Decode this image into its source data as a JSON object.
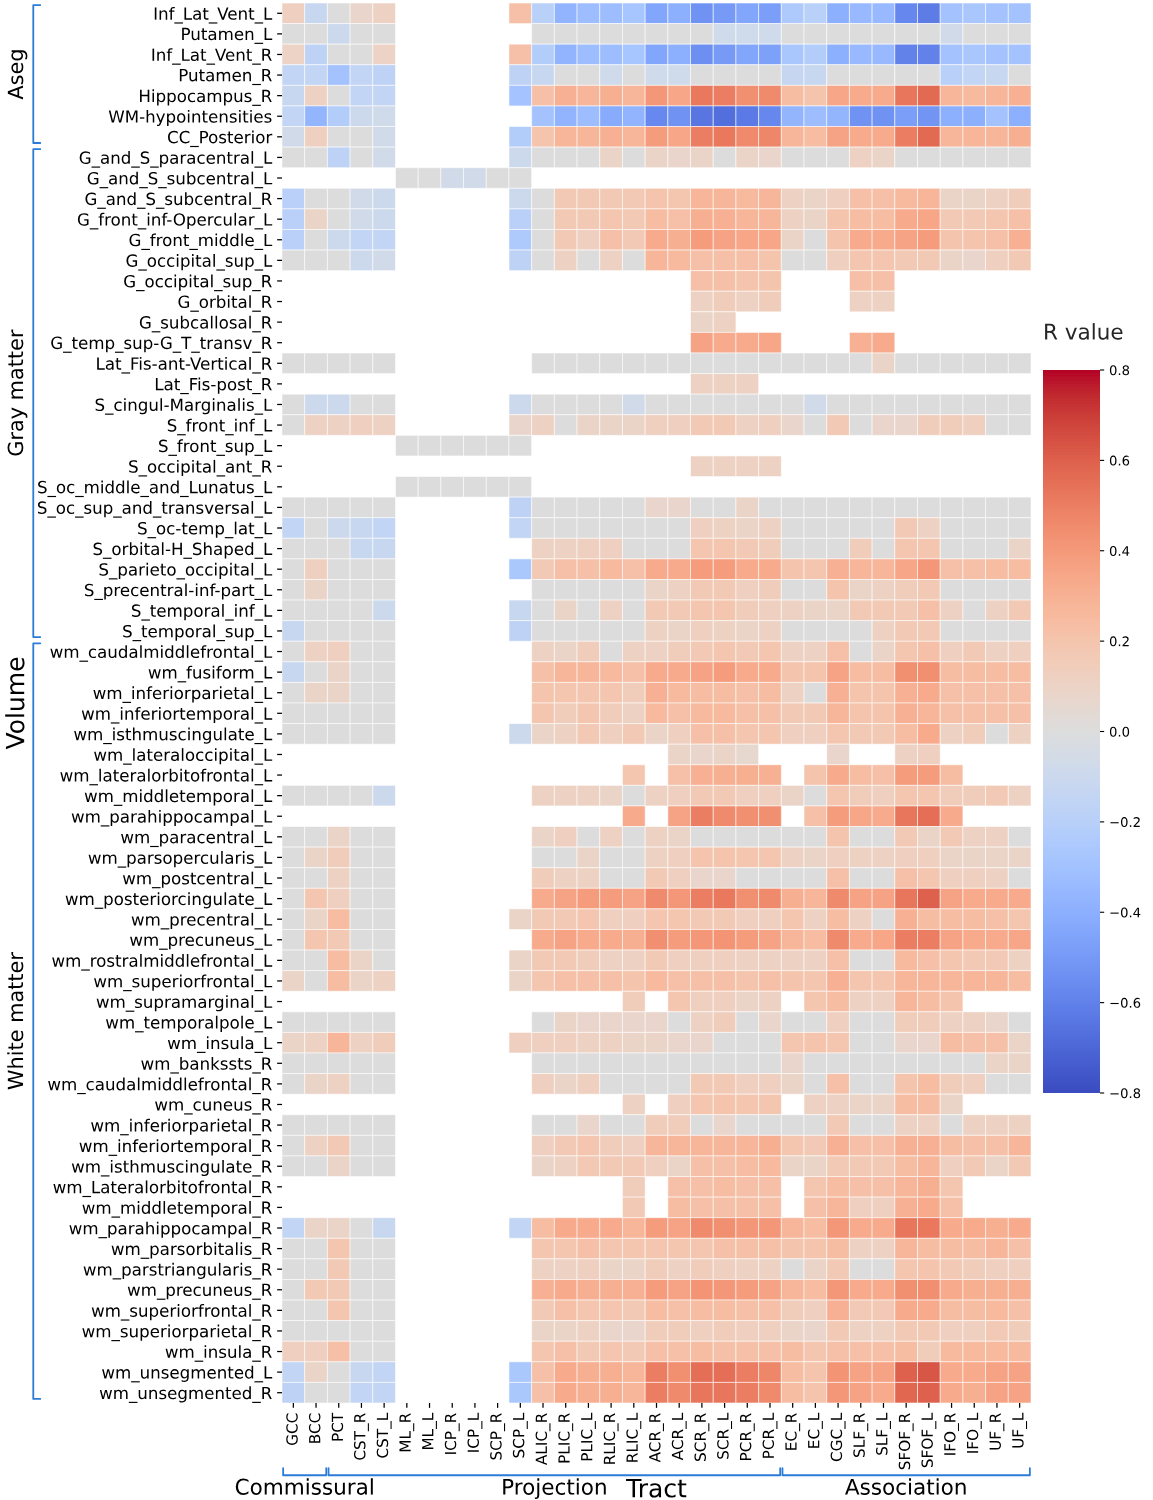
{
  "chart_data": {
    "type": "heatmap",
    "xlabel": "Tract",
    "ylabel": "Volume",
    "clabel": "R value",
    "clim": [
      -0.8,
      0.8
    ],
    "cticks": [
      {
        "value": -0.8,
        "label": "−0.8"
      },
      {
        "value": -0.6,
        "label": "−0.6"
      },
      {
        "value": -0.4,
        "label": "−0.4"
      },
      {
        "value": -0.2,
        "label": "−0.2"
      },
      {
        "value": 0,
        "label": "0.0"
      },
      0.2,
      0.4,
      0.6,
      0.8
    ],
    "categories": [
      "GCC",
      "BCC",
      "PCT",
      "CST_R",
      "CST_L",
      "ML_R",
      "ML_L",
      "ICP_R",
      "ICP_L",
      "SCP_R",
      "SCP_L",
      "ALIC_R",
      "PLIC_R",
      "PLIC_L",
      "RLIC_R",
      "RLIC_L",
      "ACR_R",
      "ACR_L",
      "SCR_R",
      "SCR_L",
      "PCR_R",
      "PCR_L",
      "EC_R",
      "EC_L",
      "CGC_L",
      "SLF_R",
      "SLF_L",
      "SFOF_R",
      "SFOF_L",
      "IFO_R",
      "IFO_L",
      "UF_R",
      "UF_L"
    ],
    "y_categories": [
      "Inf_Lat_Vent_L",
      "Putamen_L",
      "Inf_Lat_Vent_R",
      "Putamen_R",
      "Hippocampus_R",
      "WM-hypointensities",
      "CC_Posterior",
      "G_and_S_paracentral_L",
      "G_and_S_subcentral_L",
      "G_and_S_subcentral_R",
      "G_front_inf-Opercular_L",
      "G_front_middle_L",
      "G_occipital_sup_L",
      "G_occipital_sup_R",
      "G_orbital_R",
      "G_subcallosal_R",
      "G_temp_sup-G_T_transv_R",
      "Lat_Fis-ant-Vertical_R",
      "Lat_Fis-post_R",
      "S_cingul-Marginalis_L",
      "S_front_inf_L",
      "S_front_sup_L",
      "S_occipital_ant_R",
      "S_oc_middle_and_Lunatus_L",
      "S_oc_sup_and_transversal_L",
      "S_oc-temp_lat_L",
      "S_orbital-H_Shaped_L",
      "S_parieto_occipital_L",
      "S_precentral-inf-part_L",
      "S_temporal_inf_L",
      "S_temporal_sup_L",
      "wm_caudalmiddlefrontal_L",
      "wm_fusiform_L",
      "wm_inferiorparietal_L",
      "wm_inferiortemporal_L",
      "wm_isthmuscingulate_L",
      "wm_lateraloccipital_L",
      "wm_lateralorbitofrontal_L",
      "wm_middletemporal_L",
      "wm_parahippocampal_L",
      "wm_paracentral_L",
      "wm_parsopercularis_L",
      "wm_postcentral_L",
      "wm_posteriorcingulate_L",
      "wm_precentral_L",
      "wm_precuneus_L",
      "wm_rostralmiddlefrontal_L",
      "wm_superiorfrontal_L",
      "wm_supramarginal_L",
      "wm_temporalpole_L",
      "wm_insula_L",
      "wm_bankssts_R",
      "wm_caudalmiddlefrontal_R",
      "wm_cuneus_R",
      "wm_inferiorparietal_R",
      "wm_inferiortemporal_R",
      "wm_isthmuscingulate_R",
      "wm_Lateralorbitofrontal_R",
      "wm_middletemporal_R",
      "wm_parahippocampal_R",
      "wm_parsorbitalis_R",
      "wm_parstriangularis_R",
      "wm_precuneus_R",
      "wm_superiorfrontal_R",
      "wm_superiorparietal_R",
      "wm_insula_R",
      "wm_unsegmented_L",
      "wm_unsegmented_R"
    ],
    "cells": [
      [
        0.13,
        -0.12,
        0,
        0.08,
        0.11,
        null,
        null,
        null,
        null,
        null,
        0.22,
        -0.2,
        -0.38,
        -0.33,
        -0.33,
        -0.28,
        -0.45,
        -0.4,
        -0.53,
        -0.5,
        -0.45,
        -0.48,
        -0.25,
        -0.2,
        -0.4,
        -0.35,
        -0.35,
        -0.58,
        -0.62,
        -0.3,
        -0.27,
        -0.3,
        -0.3
      ],
      [
        0,
        0,
        -0.1,
        0,
        0,
        null,
        null,
        null,
        null,
        null,
        null,
        0,
        0,
        0,
        0,
        0,
        0,
        0,
        0,
        -0.08,
        -0.08,
        -0.08,
        0,
        0,
        0,
        0,
        0,
        0,
        0,
        -0.07,
        0,
        0,
        0
      ],
      [
        0.1,
        -0.17,
        0,
        0,
        0.1,
        null,
        null,
        null,
        null,
        null,
        0.22,
        -0.22,
        -0.38,
        -0.33,
        -0.33,
        -0.28,
        -0.45,
        -0.4,
        -0.55,
        -0.5,
        -0.45,
        -0.47,
        -0.27,
        -0.22,
        -0.4,
        -0.35,
        -0.35,
        -0.6,
        -0.6,
        -0.3,
        -0.27,
        -0.3,
        -0.3
      ],
      [
        -0.15,
        -0.15,
        -0.3,
        -0.15,
        -0.17,
        null,
        null,
        null,
        null,
        null,
        -0.17,
        -0.12,
        0,
        0,
        -0.08,
        0,
        -0.08,
        -0.08,
        0,
        0,
        0,
        0,
        -0.13,
        -0.12,
        0,
        0,
        0,
        0,
        0,
        -0.2,
        -0.15,
        -0.12,
        0
      ],
      [
        -0.12,
        0.11,
        0,
        -0.15,
        -0.15,
        null,
        null,
        null,
        null,
        null,
        -0.29,
        0.22,
        0.3,
        0.28,
        0.31,
        0.28,
        0.41,
        0.35,
        0.52,
        0.5,
        0.44,
        0.46,
        0.24,
        0.2,
        0.35,
        0.33,
        0.33,
        0.53,
        0.57,
        0.28,
        0.25,
        0.28,
        0.3
      ],
      [
        -0.15,
        -0.37,
        -0.22,
        -0.1,
        -0.08,
        null,
        null,
        null,
        null,
        null,
        null,
        -0.3,
        -0.38,
        -0.33,
        -0.42,
        -0.38,
        -0.57,
        -0.53,
        -0.65,
        -0.67,
        -0.63,
        -0.58,
        -0.37,
        -0.33,
        -0.37,
        -0.53,
        -0.53,
        -0.48,
        -0.52,
        -0.4,
        -0.4,
        -0.3,
        -0.4
      ],
      [
        -0.07,
        0.13,
        0,
        0,
        -0.07,
        null,
        null,
        null,
        null,
        null,
        -0.22,
        0.2,
        0.28,
        0.28,
        0.3,
        0.28,
        0.39,
        0.35,
        0.5,
        0.52,
        0.46,
        0.47,
        0.28,
        0.24,
        0.36,
        0.33,
        0.33,
        0.5,
        0.57,
        0.28,
        0.28,
        0.28,
        0.31
      ],
      [
        0,
        0,
        -0.17,
        0,
        -0.07,
        null,
        null,
        null,
        null,
        null,
        -0.1,
        0,
        0,
        0,
        0.09,
        0,
        0.09,
        0.08,
        0.09,
        0,
        0.09,
        0.08,
        0,
        0,
        0,
        0.11,
        0.09,
        0,
        0,
        0,
        0,
        0,
        0
      ],
      [
        null,
        null,
        null,
        null,
        null,
        0,
        0,
        -0.07,
        -0.07,
        0,
        0,
        null,
        null,
        null,
        null,
        null,
        null,
        null,
        null,
        null,
        null,
        null,
        null,
        null,
        null,
        null,
        null,
        null,
        null,
        null,
        null,
        null,
        null
      ],
      [
        -0.19,
        0,
        0,
        -0.07,
        -0.1,
        null,
        null,
        null,
        null,
        null,
        -0.1,
        0,
        0.17,
        0.17,
        0.17,
        0.17,
        0.2,
        0.19,
        0.28,
        0.28,
        0.25,
        0.28,
        0.11,
        0.09,
        0.13,
        0.22,
        0.22,
        0.25,
        0.28,
        0.09,
        0.09,
        0.11,
        0.14
      ],
      [
        -0.19,
        0.09,
        0,
        -0.07,
        -0.1,
        null,
        null,
        null,
        null,
        null,
        -0.19,
        0,
        0.17,
        0.17,
        0.19,
        0.17,
        0.24,
        0.22,
        0.31,
        0.3,
        0.28,
        0.28,
        0.11,
        0.09,
        0.2,
        0.24,
        0.24,
        0.33,
        0.35,
        0.17,
        0.17,
        0.19,
        0.22
      ],
      [
        -0.19,
        0,
        -0.1,
        -0.15,
        -0.15,
        null,
        null,
        null,
        null,
        null,
        -0.25,
        0,
        0.17,
        0.13,
        0.22,
        0.17,
        0.33,
        0.31,
        0.39,
        0.36,
        0.35,
        0.35,
        0.09,
        0,
        0.2,
        0.33,
        0.33,
        0.36,
        0.39,
        0.2,
        0.2,
        0.22,
        0.3
      ],
      [
        0,
        0,
        0,
        -0.1,
        -0.07,
        null,
        null,
        null,
        null,
        null,
        -0.17,
        0,
        0.11,
        0,
        0.11,
        0,
        0.28,
        0.25,
        0.22,
        0.22,
        0.22,
        0.2,
        0,
        0,
        0.13,
        0.19,
        0.19,
        0.17,
        0.17,
        0.09,
        0.08,
        0.13,
        0.17
      ],
      [
        null,
        null,
        null,
        null,
        null,
        null,
        null,
        null,
        null,
        null,
        null,
        null,
        null,
        null,
        null,
        null,
        null,
        null,
        0.22,
        0.22,
        0.2,
        0.2,
        null,
        null,
        null,
        0.22,
        0.22,
        null,
        null,
        null,
        null,
        null,
        null
      ],
      [
        null,
        null,
        null,
        null,
        null,
        null,
        null,
        null,
        null,
        null,
        null,
        null,
        null,
        null,
        null,
        null,
        null,
        null,
        0.11,
        0.14,
        0.11,
        0.14,
        null,
        null,
        null,
        0.11,
        0.11,
        null,
        null,
        null,
        null,
        null,
        null
      ],
      [
        null,
        null,
        null,
        null,
        null,
        null,
        null,
        null,
        null,
        null,
        null,
        null,
        null,
        null,
        null,
        null,
        null,
        null,
        0.09,
        0.11,
        null,
        null,
        null,
        null,
        null,
        null,
        null,
        null,
        null,
        null,
        null,
        null,
        null
      ],
      [
        null,
        null,
        null,
        null,
        null,
        null,
        null,
        null,
        null,
        null,
        null,
        null,
        null,
        null,
        null,
        null,
        null,
        null,
        0.36,
        0.33,
        0.33,
        0.35,
        null,
        null,
        null,
        0.3,
        0.33,
        null,
        null,
        null,
        null,
        null,
        null
      ],
      [
        0,
        0,
        0,
        0,
        0,
        null,
        null,
        null,
        null,
        null,
        null,
        0,
        0,
        0,
        0,
        0,
        0,
        0,
        0,
        0,
        0,
        0,
        0,
        0,
        0,
        0,
        0.09,
        0,
        0,
        0,
        0,
        0,
        0
      ],
      [
        null,
        null,
        null,
        null,
        null,
        null,
        null,
        null,
        null,
        null,
        null,
        null,
        null,
        null,
        null,
        null,
        null,
        null,
        0.11,
        0.11,
        0.11,
        null,
        null,
        null,
        null,
        null,
        null,
        null,
        null,
        null,
        null,
        null,
        null
      ],
      [
        0,
        -0.1,
        -0.1,
        0,
        0,
        null,
        null,
        null,
        null,
        null,
        -0.1,
        0,
        0,
        0,
        0,
        -0.07,
        0,
        0,
        0,
        0,
        0,
        0,
        0,
        -0.07,
        0,
        0,
        0,
        0,
        0,
        0,
        0,
        0,
        0
      ],
      [
        0,
        0.11,
        0.11,
        0.13,
        0.11,
        null,
        null,
        null,
        null,
        null,
        0.08,
        0.11,
        0,
        0.09,
        0.09,
        0.09,
        0.13,
        0.13,
        0.17,
        0.17,
        0.11,
        0.13,
        0.08,
        0,
        0.17,
        0,
        0.08,
        0.08,
        0.14,
        0.14,
        0.13,
        0,
        0
      ],
      [
        null,
        null,
        null,
        null,
        null,
        0,
        0,
        0,
        0,
        0,
        0,
        null,
        null,
        null,
        null,
        null,
        null,
        null,
        null,
        null,
        null,
        null,
        null,
        null,
        null,
        null,
        null,
        null,
        null,
        null,
        null,
        null,
        null
      ],
      [
        null,
        null,
        null,
        null,
        null,
        null,
        null,
        null,
        null,
        null,
        null,
        null,
        null,
        null,
        null,
        null,
        null,
        null,
        0.11,
        0.11,
        0.11,
        0.11,
        null,
        null,
        null,
        null,
        null,
        null,
        null,
        null,
        null,
        null,
        null
      ],
      [
        null,
        null,
        null,
        null,
        null,
        0,
        0,
        0,
        0,
        0,
        0,
        null,
        null,
        null,
        null,
        null,
        null,
        null,
        null,
        null,
        null,
        null,
        null,
        null,
        null,
        null,
        null,
        null,
        null,
        null,
        null,
        null,
        null
      ],
      [
        0,
        0,
        0,
        0,
        0,
        null,
        null,
        null,
        null,
        null,
        -0.17,
        0,
        0,
        0,
        0,
        0,
        0.08,
        0.08,
        0,
        0,
        0.09,
        0,
        0,
        0,
        0,
        0,
        0,
        0,
        0,
        0,
        0,
        0,
        0
      ],
      [
        -0.15,
        0,
        -0.1,
        -0.12,
        -0.15,
        null,
        null,
        null,
        null,
        null,
        -0.15,
        0,
        0,
        0,
        0,
        0,
        0,
        0,
        0.13,
        0.11,
        0.09,
        0.11,
        0,
        0,
        0,
        0,
        0,
        0.17,
        0.11,
        0,
        0,
        0,
        0
      ],
      [
        0,
        0,
        0,
        -0.12,
        -0.12,
        null,
        null,
        null,
        null,
        null,
        null,
        0.11,
        0.11,
        0.13,
        0.13,
        0,
        0,
        0,
        0.19,
        0.19,
        0.17,
        0.14,
        0,
        0,
        0,
        0.14,
        0,
        0.19,
        0.19,
        0,
        0,
        0,
        0.09
      ],
      [
        0,
        0.13,
        0,
        0,
        0,
        null,
        null,
        null,
        null,
        null,
        -0.26,
        0.17,
        0.22,
        0.22,
        0.25,
        0.22,
        0.33,
        0.33,
        0.39,
        0.39,
        0.33,
        0.33,
        0.2,
        0.19,
        0.3,
        0.28,
        0.28,
        0.35,
        0.41,
        0.22,
        0.22,
        0.24,
        0.24
      ],
      [
        0,
        0.09,
        0,
        0,
        0,
        null,
        null,
        null,
        null,
        null,
        null,
        0,
        0,
        0,
        0,
        0,
        0.09,
        0.11,
        0.17,
        0.17,
        0.13,
        0.14,
        0,
        0,
        0.2,
        0.09,
        0.11,
        0.14,
        0.17,
        0,
        0,
        0,
        0
      ],
      [
        0,
        0,
        0,
        0,
        -0.1,
        null,
        null,
        null,
        null,
        null,
        -0.12,
        0,
        0.09,
        0,
        0.11,
        0,
        0.17,
        0.17,
        0.19,
        0.19,
        0.14,
        0.13,
        0.11,
        0.09,
        0.09,
        0.17,
        0.17,
        0.17,
        0.22,
        0.11,
        0,
        0.11,
        0.17
      ],
      [
        -0.12,
        0,
        0,
        0,
        0,
        null,
        null,
        null,
        null,
        null,
        -0.17,
        0,
        0,
        0,
        0,
        0,
        0.11,
        0.09,
        0.13,
        0.11,
        0.09,
        0.11,
        0,
        0,
        0,
        0,
        0.11,
        0.17,
        0.17,
        0,
        0,
        0,
        0
      ],
      [
        0,
        0.11,
        0.13,
        0,
        0,
        null,
        null,
        null,
        null,
        null,
        null,
        0.11,
        0.09,
        0.14,
        0,
        0.11,
        0.11,
        0.14,
        0.17,
        0.19,
        0.17,
        0.19,
        0.11,
        0.11,
        0.22,
        0,
        0.09,
        0.19,
        0.22,
        0.13,
        0.17,
        0.11,
        0.13
      ],
      [
        -0.12,
        0,
        0.09,
        0,
        0,
        null,
        null,
        null,
        null,
        null,
        null,
        0.22,
        0.28,
        0.28,
        0.25,
        0.22,
        0.33,
        0.33,
        0.36,
        0.39,
        0.33,
        0.33,
        0.2,
        0.2,
        0.36,
        0.24,
        0.24,
        0.44,
        0.44,
        0.24,
        0.24,
        0.24,
        0.24
      ],
      [
        0,
        0.09,
        0.09,
        0,
        0,
        null,
        null,
        null,
        null,
        null,
        null,
        0.2,
        0.19,
        0.19,
        0.19,
        0.14,
        0.3,
        0.25,
        0.24,
        0.24,
        0.22,
        0.24,
        0.11,
        0,
        0.3,
        0.2,
        0.2,
        0.3,
        0.33,
        0.22,
        0.22,
        0.22,
        0.22
      ],
      [
        0,
        0,
        0,
        0,
        0,
        null,
        null,
        null,
        null,
        null,
        null,
        0.19,
        0.14,
        0.19,
        0.14,
        0.11,
        0.25,
        0.22,
        0.25,
        0.25,
        0.22,
        0.22,
        0.17,
        0.17,
        0.28,
        0.2,
        0.2,
        0.3,
        0.28,
        0.22,
        0.22,
        0.22,
        0.22
      ],
      [
        0,
        0,
        0,
        0,
        0,
        null,
        null,
        null,
        null,
        null,
        -0.1,
        0.09,
        0.11,
        0.17,
        0.13,
        0.17,
        0.09,
        0.13,
        0.22,
        0.22,
        0.19,
        0.19,
        0.13,
        0.13,
        0.19,
        0.17,
        0.17,
        0.24,
        0.33,
        0.11,
        0.14,
        0,
        0.11
      ],
      [
        null,
        null,
        null,
        null,
        null,
        null,
        null,
        null,
        null,
        null,
        null,
        null,
        null,
        null,
        null,
        null,
        null,
        0.09,
        0.08,
        0.09,
        0.06,
        null,
        null,
        null,
        0.08,
        null,
        null,
        0.11,
        0.13,
        null,
        null,
        null,
        null
      ],
      [
        null,
        null,
        null,
        null,
        null,
        null,
        null,
        null,
        null,
        null,
        null,
        null,
        null,
        null,
        null,
        0.19,
        null,
        0.22,
        0.3,
        0.31,
        0.31,
        0.3,
        null,
        0.2,
        0.33,
        0.24,
        0.22,
        0.39,
        0.39,
        0.24,
        null,
        null,
        null
      ],
      [
        0,
        0,
        0,
        0,
        -0.1,
        null,
        null,
        null,
        null,
        null,
        null,
        0.11,
        0.11,
        0.11,
        0.09,
        0,
        0.11,
        0.13,
        0.17,
        0.17,
        0.13,
        0.13,
        0.09,
        0,
        0.19,
        0.14,
        0.13,
        0.19,
        0.19,
        0.14,
        0.14,
        0.17,
        0.11
      ],
      [
        null,
        null,
        null,
        null,
        null,
        null,
        null,
        null,
        null,
        null,
        null,
        null,
        null,
        null,
        null,
        0.33,
        null,
        0.36,
        0.5,
        0.46,
        0.44,
        0.44,
        null,
        0.22,
        0.39,
        0.35,
        0.33,
        0.53,
        0.55,
        0.33,
        null,
        null,
        null
      ],
      [
        0,
        0,
        0.09,
        0,
        0,
        null,
        null,
        null,
        null,
        null,
        null,
        0.09,
        0.13,
        0,
        0.11,
        0,
        0.11,
        0.09,
        0,
        0,
        0,
        0,
        0,
        0,
        0.2,
        0,
        0,
        0.17,
        0.09,
        0.17,
        0.11,
        0.11,
        0
      ],
      [
        0,
        0.09,
        0.14,
        0,
        0,
        null,
        null,
        null,
        null,
        null,
        null,
        0,
        0,
        0.09,
        0,
        0,
        0.11,
        0.13,
        0.2,
        0.2,
        0.19,
        0.19,
        0.11,
        0.09,
        0.13,
        0.11,
        0.11,
        0.13,
        0.13,
        0.09,
        0.09,
        0.09,
        0.09
      ],
      [
        0,
        0,
        0.11,
        0,
        0,
        null,
        null,
        null,
        null,
        null,
        null,
        0.14,
        0.11,
        0.11,
        0,
        0,
        0.17,
        0.13,
        0.08,
        0.08,
        0,
        0,
        0,
        0,
        0.22,
        0,
        0,
        0.22,
        0.19,
        0.13,
        0.13,
        0.11,
        0
      ],
      [
        0,
        0.19,
        0.13,
        0,
        0,
        null,
        null,
        null,
        null,
        null,
        null,
        0.33,
        0.36,
        0.39,
        0.39,
        0.36,
        0.46,
        0.41,
        0.5,
        0.52,
        0.44,
        0.46,
        0.31,
        0.28,
        0.46,
        0.36,
        0.36,
        0.53,
        0.6,
        0.36,
        0.33,
        0.33,
        0.33
      ],
      [
        0,
        0.09,
        0.24,
        0,
        0,
        null,
        null,
        null,
        null,
        null,
        0.09,
        0.17,
        0.17,
        0.19,
        0.13,
        0.13,
        0.19,
        0.19,
        0.17,
        0.17,
        0.13,
        0.13,
        0.19,
        0.11,
        0.24,
        0.11,
        0,
        0.3,
        0.24,
        0.24,
        0.24,
        0.22,
        0.19
      ],
      [
        0,
        0.19,
        0.17,
        0,
        0,
        null,
        null,
        null,
        null,
        null,
        null,
        0.33,
        0.36,
        0.33,
        0.33,
        0.31,
        0.44,
        0.39,
        0.41,
        0.42,
        0.39,
        0.36,
        0.28,
        0.24,
        0.46,
        0.33,
        0.35,
        0.5,
        0.5,
        0.36,
        0.33,
        0.33,
        0.35
      ],
      [
        0,
        0,
        0.24,
        0.09,
        0,
        null,
        null,
        null,
        null,
        null,
        0.09,
        0.17,
        0.17,
        0.14,
        0.11,
        0.11,
        0.17,
        0.13,
        0.13,
        0.13,
        0.11,
        0.11,
        0.11,
        0.11,
        0.22,
        0,
        0,
        0.25,
        0.22,
        0.19,
        0.17,
        0.17,
        0.11
      ],
      [
        0.09,
        0,
        0.24,
        0.09,
        0.11,
        null,
        null,
        null,
        null,
        null,
        0.09,
        0.19,
        0.22,
        0.22,
        0.22,
        0.2,
        0.25,
        0.22,
        0.22,
        0.22,
        0.2,
        0.22,
        0.2,
        0.19,
        0.3,
        0.19,
        0.19,
        0.28,
        0.28,
        0.28,
        0.28,
        0.28,
        0.24
      ],
      [
        null,
        null,
        null,
        null,
        null,
        null,
        null,
        null,
        null,
        null,
        null,
        null,
        null,
        null,
        null,
        0.14,
        null,
        0.19,
        0.13,
        0.13,
        0.09,
        0.11,
        null,
        0.19,
        0.24,
        0.11,
        0.11,
        0.28,
        0.24,
        0.2,
        null,
        null,
        null
      ],
      [
        0,
        0,
        0,
        0,
        0,
        null,
        null,
        null,
        null,
        null,
        null,
        0,
        0.09,
        0.08,
        0.08,
        0.08,
        0.08,
        0,
        0.11,
        0.14,
        0,
        0.08,
        0,
        0,
        0.13,
        0,
        0,
        0.14,
        0.14,
        0.11,
        0.11,
        0.08,
        0
      ],
      [
        0.09,
        0.11,
        0.28,
        0.11,
        0.14,
        null,
        null,
        null,
        null,
        null,
        0.13,
        0.13,
        0.13,
        0.11,
        0.11,
        0.09,
        0.09,
        0.08,
        0.08,
        0,
        0,
        0,
        0.19,
        0.2,
        0.19,
        0,
        0,
        0.08,
        0.08,
        0.24,
        0.22,
        0.22,
        0.09
      ],
      [
        0,
        0,
        0,
        0,
        0,
        null,
        null,
        null,
        null,
        null,
        null,
        0,
        0,
        0,
        0,
        0,
        0,
        0,
        0,
        0,
        0,
        0,
        0.08,
        0,
        0,
        0,
        0,
        0,
        0,
        0,
        0,
        0.09,
        0.09
      ],
      [
        0,
        0.09,
        0.11,
        0,
        0,
        null,
        null,
        null,
        null,
        null,
        null,
        0.13,
        0.09,
        0.13,
        0,
        0,
        0,
        0,
        0.17,
        0.17,
        0.13,
        0.13,
        0.09,
        0,
        0.22,
        0,
        0,
        0.2,
        0.24,
        0.14,
        0.13,
        0,
        0
      ],
      [
        null,
        null,
        null,
        null,
        null,
        null,
        null,
        null,
        null,
        null,
        null,
        null,
        null,
        null,
        null,
        0.11,
        null,
        0.13,
        0.19,
        0.2,
        0.19,
        0.19,
        null,
        0.11,
        0.11,
        0.09,
        0.09,
        0.24,
        0.24,
        0.09,
        null,
        null,
        null
      ],
      [
        0,
        0,
        0,
        0,
        0,
        null,
        null,
        null,
        null,
        null,
        null,
        0,
        0,
        0.08,
        0,
        0,
        0.14,
        0.14,
        0,
        0.08,
        0,
        0,
        0,
        0,
        0.17,
        0,
        0,
        0.11,
        0.11,
        0,
        0.11,
        0.11,
        0.11
      ],
      [
        0,
        0.11,
        0.17,
        0,
        0,
        null,
        null,
        null,
        null,
        null,
        null,
        0.13,
        0.17,
        0.19,
        0.14,
        0.13,
        0.28,
        0.28,
        0.28,
        0.28,
        0.28,
        0.31,
        0.19,
        0.17,
        0.3,
        0.22,
        0.22,
        0.3,
        0.3,
        0.24,
        0.22,
        0.22,
        0.28
      ],
      [
        0,
        0,
        0.09,
        0,
        0,
        null,
        null,
        null,
        null,
        null,
        null,
        0.09,
        0.11,
        0.17,
        0.17,
        0.17,
        0.13,
        0.09,
        0.22,
        0.22,
        0.24,
        0.25,
        0.09,
        0.09,
        0.17,
        0.17,
        0.17,
        0.24,
        0.28,
        0.13,
        0.17,
        0.09,
        0.17
      ],
      [
        null,
        null,
        null,
        null,
        null,
        null,
        null,
        null,
        null,
        null,
        null,
        null,
        null,
        null,
        null,
        0.14,
        null,
        0.22,
        0.22,
        0.24,
        0.22,
        0.22,
        null,
        0.19,
        0.24,
        0.22,
        0.22,
        0.28,
        0.31,
        0.19,
        null,
        null,
        null
      ],
      [
        null,
        null,
        null,
        null,
        null,
        null,
        null,
        null,
        null,
        null,
        null,
        null,
        null,
        null,
        null,
        0.17,
        null,
        0.24,
        0.22,
        0.22,
        0.22,
        0.22,
        null,
        0.22,
        0.28,
        0.13,
        0.13,
        0.3,
        0.33,
        0.22,
        null,
        null,
        null
      ],
      [
        -0.15,
        0.09,
        0.09,
        0,
        -0.12,
        null,
        null,
        null,
        null,
        null,
        -0.15,
        0.24,
        0.33,
        0.33,
        0.33,
        0.28,
        0.39,
        0.36,
        0.46,
        0.44,
        0.41,
        0.41,
        0.28,
        0.24,
        0.41,
        0.33,
        0.33,
        0.53,
        0.52,
        0.33,
        0.33,
        0.31,
        0.33
      ],
      [
        0,
        0,
        0.19,
        0,
        0,
        null,
        null,
        null,
        null,
        null,
        null,
        0.19,
        0.19,
        0.22,
        0.19,
        0.19,
        0.19,
        0.19,
        0.19,
        0.22,
        0.22,
        0.22,
        0.2,
        0.2,
        0.24,
        0.11,
        0.11,
        0.28,
        0.24,
        0.24,
        0.24,
        0.28,
        0.22
      ],
      [
        0,
        0,
        0.17,
        0,
        0,
        null,
        null,
        null,
        null,
        null,
        null,
        0.11,
        0.11,
        0.13,
        0.09,
        0.09,
        0.14,
        0.11,
        0.14,
        0.13,
        0.11,
        0.11,
        0,
        0.09,
        0.17,
        0,
        0,
        0.19,
        0.2,
        0.17,
        0.14,
        0.13,
        0.13
      ],
      [
        0,
        0.17,
        0.17,
        0,
        0,
        null,
        null,
        null,
        null,
        null,
        null,
        0.3,
        0.33,
        0.31,
        0.31,
        0.3,
        0.39,
        0.36,
        0.42,
        0.41,
        0.39,
        0.36,
        0.28,
        0.24,
        0.41,
        0.33,
        0.33,
        0.44,
        0.44,
        0.33,
        0.31,
        0.31,
        0.31
      ],
      [
        0,
        0,
        0.19,
        0,
        0,
        null,
        null,
        null,
        null,
        null,
        null,
        0.17,
        0.22,
        0.19,
        0.19,
        0.17,
        0.24,
        0.22,
        0.24,
        0.24,
        0.22,
        0.22,
        0.14,
        0.13,
        0.3,
        0.17,
        0.17,
        0.33,
        0.33,
        0.24,
        0.24,
        0.25,
        0.22
      ],
      [
        0,
        0,
        0,
        0,
        0,
        null,
        null,
        null,
        null,
        null,
        null,
        0.09,
        0.09,
        0.11,
        0.08,
        0.08,
        0.14,
        0.14,
        0.13,
        0.14,
        0.13,
        0.13,
        0.09,
        0.08,
        0.17,
        0.11,
        0.11,
        0.17,
        0.17,
        0.13,
        0.13,
        0.17,
        0.14
      ],
      [
        0.13,
        0.13,
        0.22,
        0,
        0,
        null,
        null,
        null,
        null,
        null,
        null,
        0.19,
        0.22,
        0.17,
        0.19,
        0.17,
        0.22,
        0.22,
        0.24,
        0.22,
        0.22,
        0.22,
        0.24,
        0.19,
        0.22,
        0.22,
        0.22,
        0.24,
        0.14,
        0.25,
        0.25,
        0.25,
        0.25
      ],
      [
        -0.15,
        0.09,
        0,
        -0.12,
        -0.15,
        null,
        null,
        null,
        null,
        null,
        -0.26,
        0.22,
        0.33,
        0.31,
        0.31,
        0.28,
        0.5,
        0.44,
        0.55,
        0.55,
        0.5,
        0.47,
        0.24,
        0.2,
        0.42,
        0.36,
        0.36,
        0.6,
        0.63,
        0.33,
        0.33,
        0.36,
        0.36
      ],
      [
        -0.17,
        0,
        0,
        -0.15,
        -0.15,
        null,
        null,
        null,
        null,
        null,
        -0.26,
        0.22,
        0.33,
        0.31,
        0.31,
        0.28,
        0.5,
        0.46,
        0.53,
        0.53,
        0.5,
        0.46,
        0.24,
        0.2,
        0.41,
        0.36,
        0.33,
        0.58,
        0.6,
        0.33,
        0.31,
        0.36,
        0.36
      ]
    ],
    "annotations": [
      "Aseg",
      "Gray matter",
      "White matter",
      "Commissural",
      "Projection",
      "Association"
    ]
  }
}
